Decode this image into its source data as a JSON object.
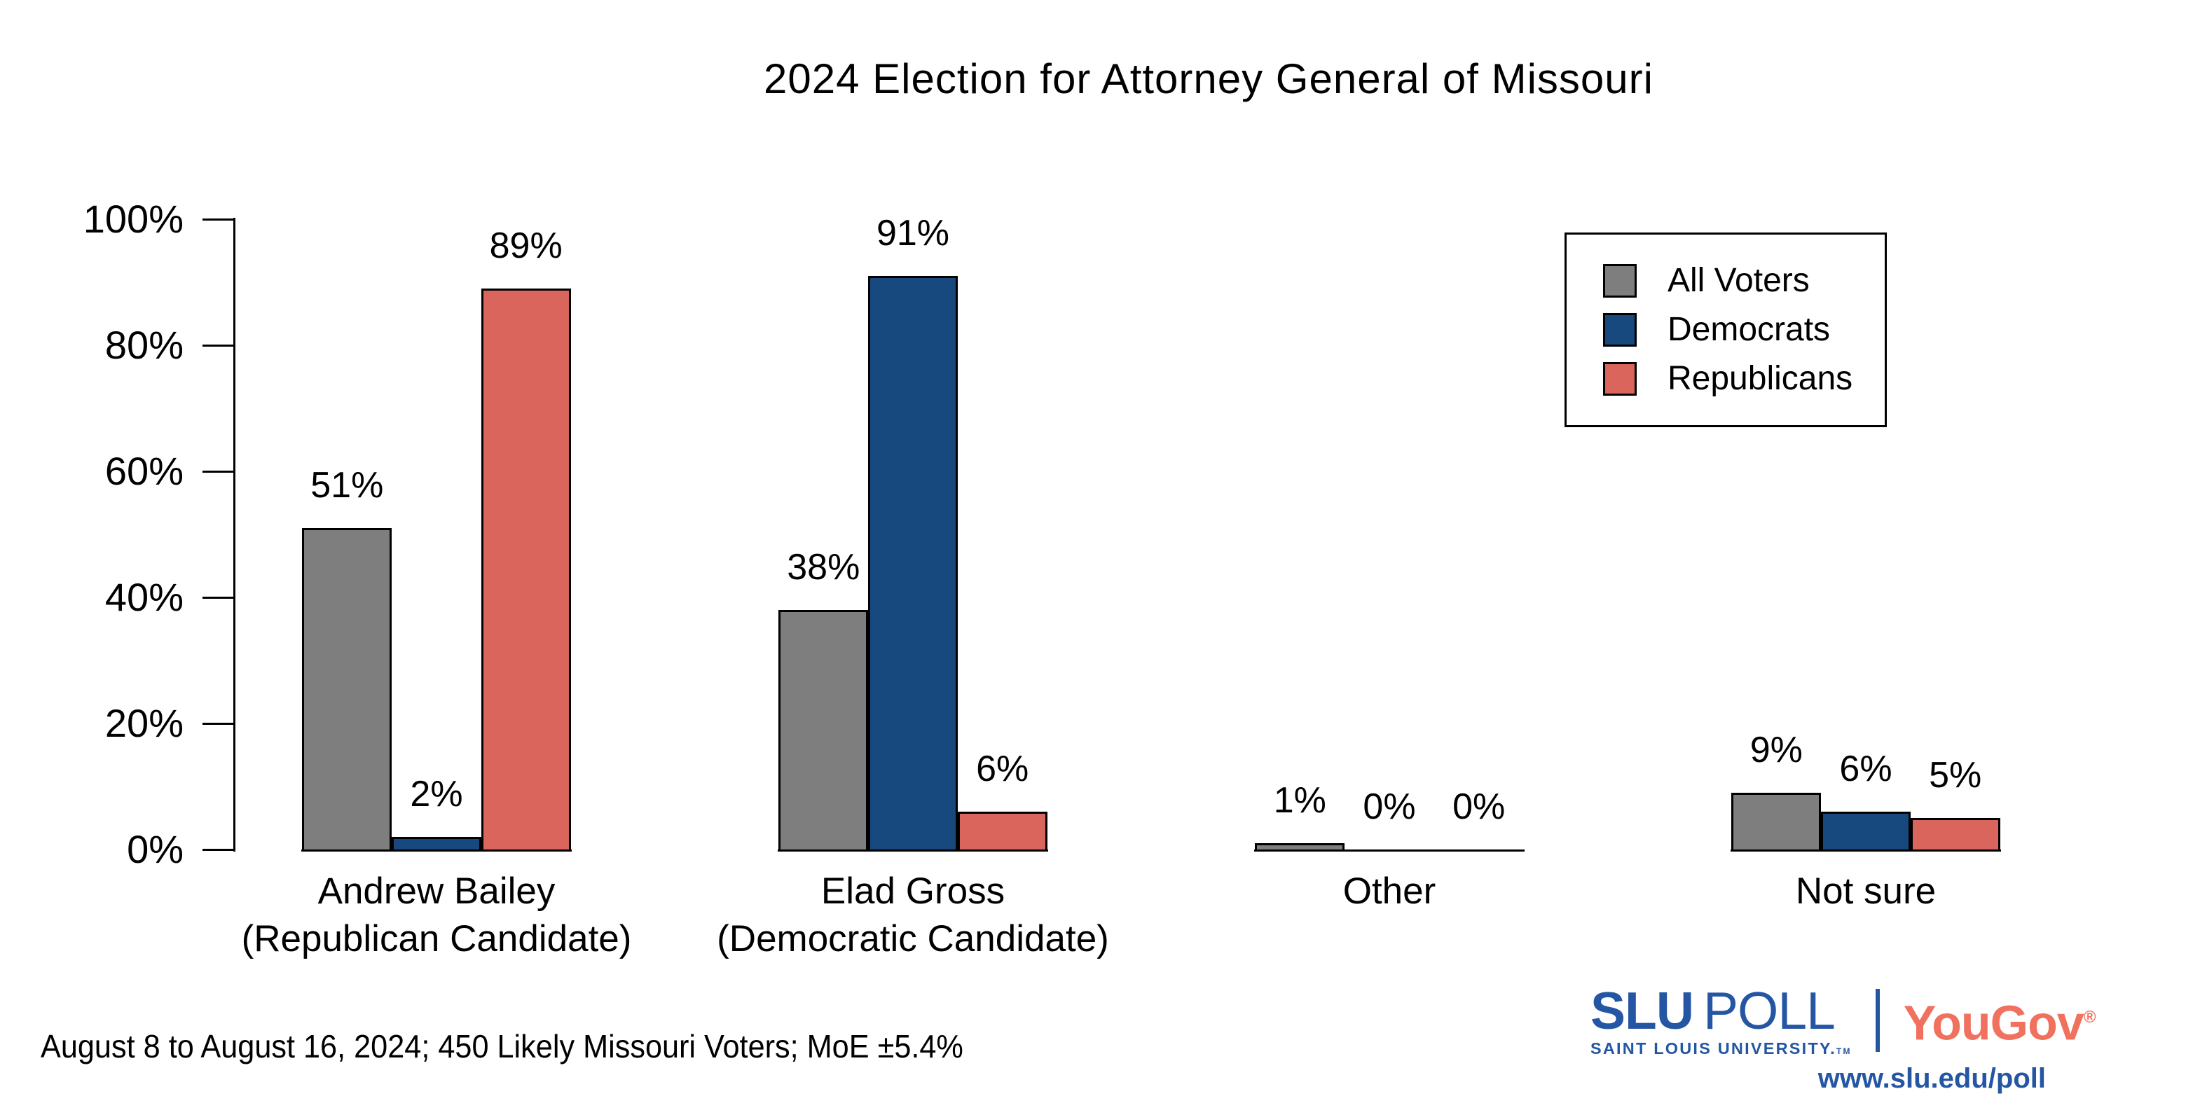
{
  "title": "2024 Election for Attorney General of Missouri",
  "footer": "August 8 to August 16, 2024; 450 Likely Missouri Voters; MoE ±5.4%",
  "y_axis": {
    "ticks": [
      "0%",
      "20%",
      "40%",
      "60%",
      "80%",
      "100%"
    ]
  },
  "legend": {
    "items": [
      {
        "label": "All Voters",
        "color": "#7E7E7E"
      },
      {
        "label": "Democrats",
        "color": "#17497E"
      },
      {
        "label": "Republicans",
        "color": "#D9655C"
      }
    ]
  },
  "chart_data": {
    "type": "bar",
    "title": "2024 Election for Attorney General of Missouri",
    "categories": [
      "Andrew Bailey\n(Republican Candidate)",
      "Elad Gross\n(Democratic Candidate)",
      "Other",
      "Not sure"
    ],
    "series": [
      {
        "name": "All Voters",
        "color": "#7E7E7E",
        "values": [
          51,
          38,
          1,
          9
        ]
      },
      {
        "name": "Democrats",
        "color": "#17497E",
        "values": [
          2,
          91,
          0,
          6
        ]
      },
      {
        "name": "Republicans",
        "color": "#D9655C",
        "values": [
          89,
          6,
          0,
          5
        ]
      }
    ],
    "value_label_format": "percent",
    "xlabel": "",
    "ylabel": "",
    "ylim": [
      0,
      100
    ],
    "grid": false,
    "legend_position": "top-right",
    "bar_border_color": "#000000",
    "background": "#FFFFFF"
  },
  "logo": {
    "slu": "SLU",
    "poll": "POLL",
    "university": "SAINT LOUIS UNIVERSITY.",
    "tm": "TM",
    "yougov": "YouGov",
    "reg": "®",
    "url": "www.slu.edu/poll",
    "slu_blue": "#2456A4",
    "yougov_coral": "#F1715F"
  }
}
